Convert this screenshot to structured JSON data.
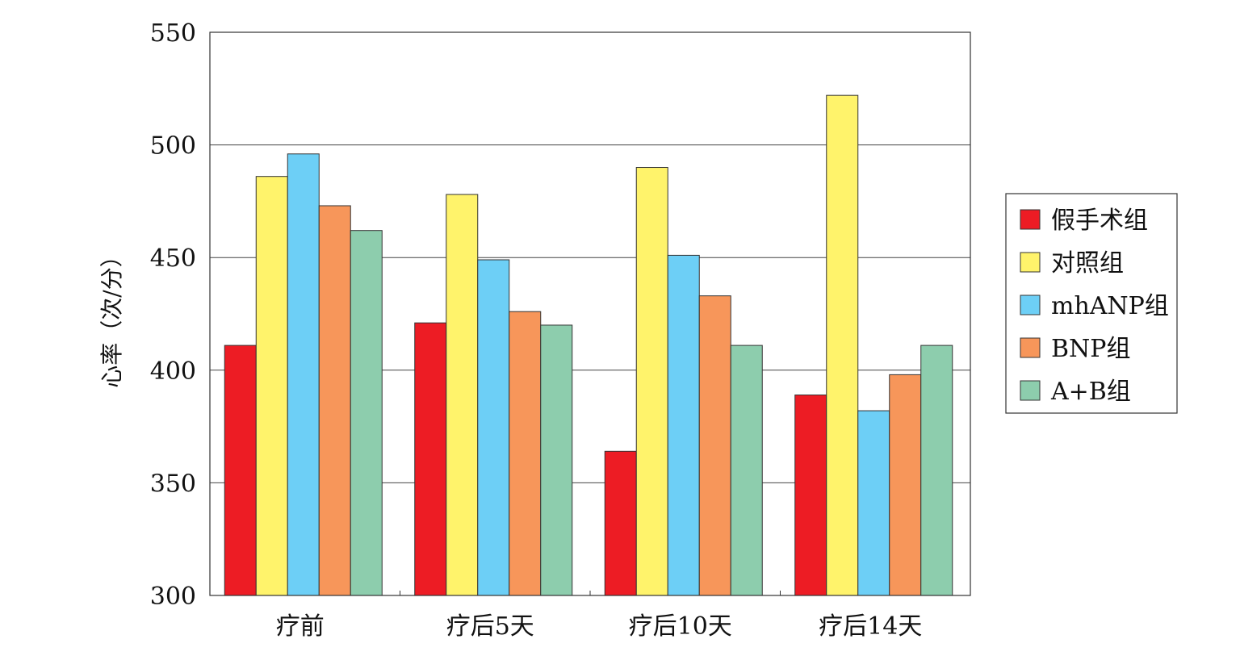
{
  "chart_data": {
    "type": "bar",
    "title": "",
    "xlabel": "",
    "ylabel": "心率（次/分）",
    "ylim": [
      300,
      550
    ],
    "yticks": [
      300,
      350,
      400,
      450,
      500,
      550
    ],
    "grid": true,
    "legend_position": "right",
    "categories": [
      "疗前",
      "疗后5天",
      "疗后10天",
      "疗后14天"
    ],
    "series": [
      {
        "name": "假手术组",
        "color": "#ed1c24",
        "values": [
          411,
          421,
          364,
          389
        ]
      },
      {
        "name": "对照组",
        "color": "#fff36b",
        "values": [
          486,
          478,
          490,
          522
        ]
      },
      {
        "name": "mhANP组",
        "color": "#6dcff6",
        "values": [
          496,
          449,
          451,
          382
        ]
      },
      {
        "name": "BNP组",
        "color": "#f7965a",
        "values": [
          473,
          426,
          433,
          398
        ]
      },
      {
        "name": "A+B组",
        "color": "#8dcdad",
        "values": [
          462,
          420,
          411,
          411
        ]
      }
    ]
  }
}
